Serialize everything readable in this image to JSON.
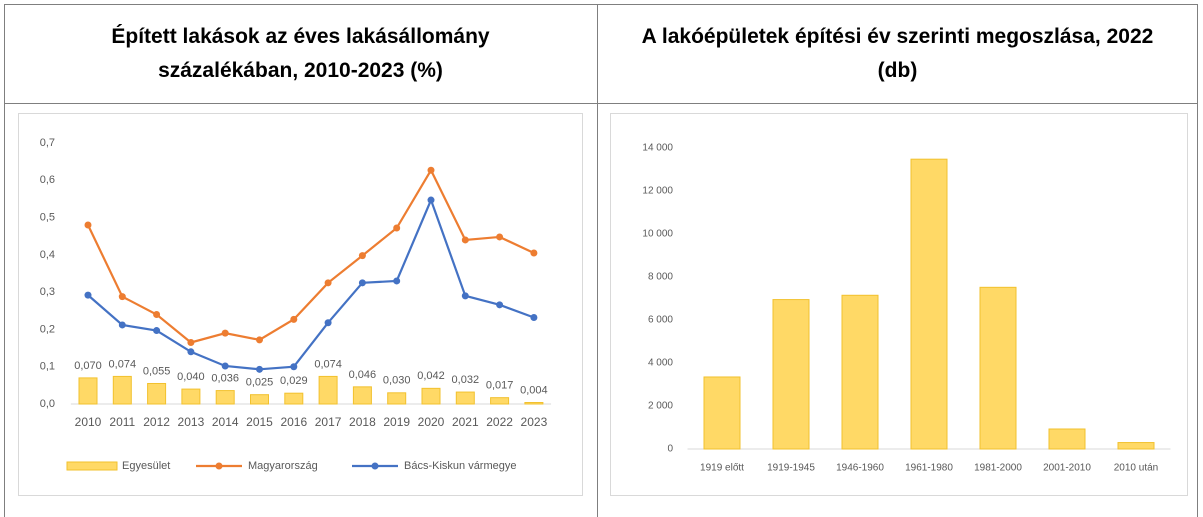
{
  "charts_header": null,
  "chart_data": [
    {
      "type": "combo",
      "title": "Épített lakások az éves lakásállomány százalékában, 2010-2023 (%)",
      "categories": [
        "2010",
        "2011",
        "2012",
        "2013",
        "2014",
        "2015",
        "2016",
        "2017",
        "2018",
        "2019",
        "2020",
        "2021",
        "2022",
        "2023"
      ],
      "series": [
        {
          "name": "Egyesület",
          "kind": "bar",
          "color": "#ffd966",
          "values": [
            0.07,
            0.074,
            0.055,
            0.04,
            0.036,
            0.025,
            0.029,
            0.074,
            0.046,
            0.03,
            0.042,
            0.032,
            0.017,
            0.004
          ],
          "value_labels": [
            "0,070",
            "0,074",
            "0,055",
            "0,040",
            "0,036",
            "0,025",
            "0,029",
            "0,074",
            "0,046",
            "0,030",
            "0,042",
            "0,032",
            "0,017",
            "0,004"
          ]
        },
        {
          "name": "Magyarország",
          "kind": "line",
          "color": "#ed7d31",
          "values": [
            0.48,
            0.288,
            0.24,
            0.165,
            0.19,
            0.172,
            0.227,
            0.325,
            0.398,
            0.472,
            0.627,
            0.44,
            0.448,
            0.405
          ]
        },
        {
          "name": "Bács-Kiskun vármegye",
          "kind": "line",
          "color": "#4472c4",
          "values": [
            0.292,
            0.212,
            0.197,
            0.14,
            0.102,
            0.093,
            0.1,
            0.218,
            0.325,
            0.33,
            0.547,
            0.29,
            0.266,
            0.232
          ]
        }
      ],
      "ylim": [
        0,
        0.7
      ],
      "yticks": [
        {
          "value": 0,
          "label": "0,0"
        },
        {
          "value": 0.1,
          "label": "0,1"
        },
        {
          "value": 0.2,
          "label": "0,2"
        },
        {
          "value": 0.3,
          "label": "0,3"
        },
        {
          "value": 0.4,
          "label": "0,4"
        },
        {
          "value": 0.5,
          "label": "0,5"
        },
        {
          "value": 0.6,
          "label": "0,6"
        },
        {
          "value": 0.7,
          "label": "0,7"
        }
      ],
      "grid": false,
      "legend": "bottom"
    },
    {
      "type": "bar",
      "title": "A lakóépületek építési év szerinti megoszlása, 2022 (db)",
      "categories": [
        "1919 előtt",
        "1919-1945",
        "1946-1960",
        "1961-1980",
        "1981-2000",
        "2001-2010",
        "2010 után"
      ],
      "values": [
        3350,
        6950,
        7150,
        13480,
        7520,
        930,
        300
      ],
      "color": "#ffd966",
      "ylim": [
        0,
        14000
      ],
      "yticks": [
        0,
        {
          "value": 2000,
          "label": "2 000"
        },
        {
          "value": 4000,
          "label": "4 000"
        },
        {
          "value": 6000,
          "label": "6 000"
        },
        {
          "value": 8000,
          "label": "8 000"
        },
        {
          "value": 10000,
          "label": "10 000"
        },
        {
          "value": 12000,
          "label": "12 000"
        },
        {
          "value": 14000,
          "label": "14 000"
        }
      ],
      "grid": false
    }
  ]
}
